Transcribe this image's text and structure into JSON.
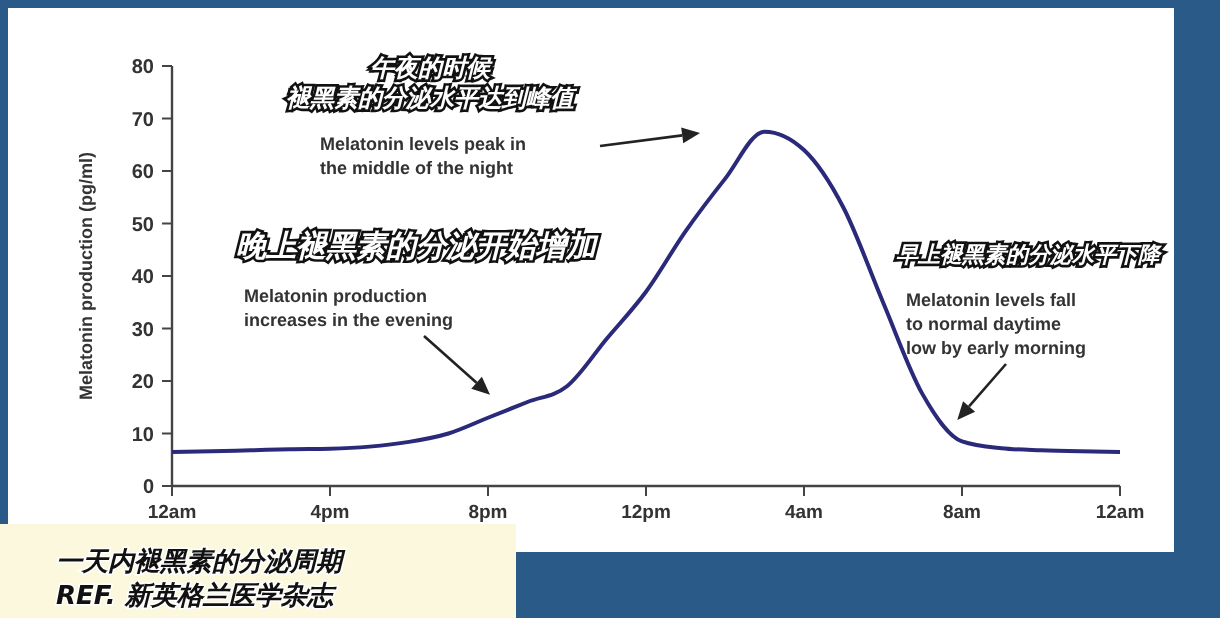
{
  "chart_data": {
    "type": "line",
    "title": "一天内褪黑素的分泌周期",
    "ylabel": "Melatonin production (pg/ml)",
    "categories": [
      "12am",
      null,
      null,
      null,
      "4pm",
      null,
      null,
      null,
      "8pm",
      null,
      null,
      null,
      "12pm",
      null,
      null,
      null,
      "4am",
      null,
      null,
      null,
      "8am",
      null,
      null,
      null,
      "12am"
    ],
    "series": [
      {
        "color": "#2b2a7a",
        "values": [
          6.5,
          6.6,
          6.8,
          7,
          7.1,
          7.5,
          8.4,
          10,
          13,
          16,
          19,
          28,
          37,
          48.5,
          58.5,
          67.5,
          64,
          53,
          35,
          17.5,
          8.5,
          7.2,
          6.8,
          6.6,
          6.5
        ]
      }
    ],
    "ylim": [
      0,
      80
    ],
    "yticks": [
      0,
      10,
      20,
      30,
      40,
      50,
      60,
      70,
      80
    ],
    "grid": false,
    "marker": "none",
    "line_style": "solid",
    "annotations": [
      "午夜的时候",
      "褪黑素的分泌水平达到峰值",
      "Melatonin levels peak in\nthe middle of the night",
      "晚上褪黑素的分泌开始增加",
      "Melatonin production\nincreases in the evening",
      "早上褪黑素的分泌水平下降",
      "Melatonin levels fall\nto normal daytime\nlow by early morning",
      "REF. 新英格兰医学杂志"
    ]
  }
}
